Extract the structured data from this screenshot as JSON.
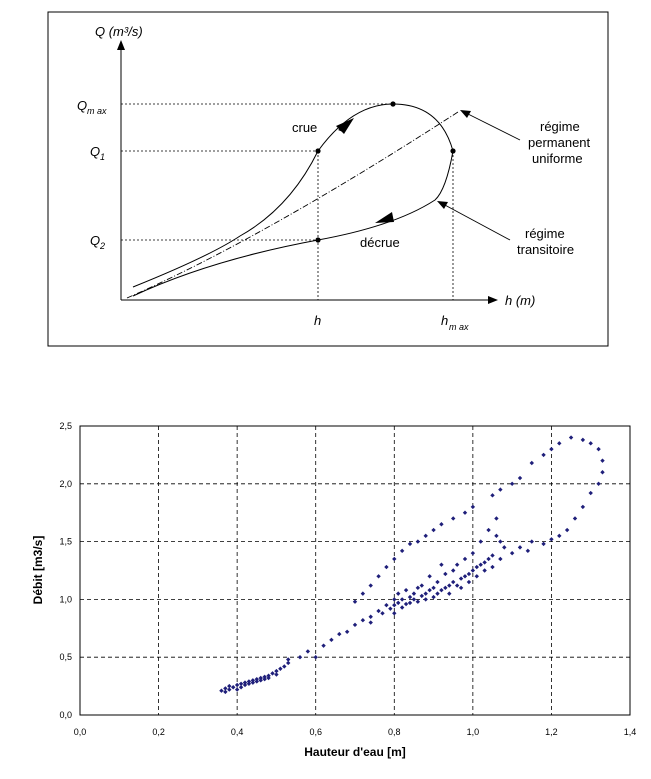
{
  "schematic": {
    "y_axis_label": "Q (m³/s)",
    "x_axis_label": "h (m)",
    "q_max": {
      "main": "Q",
      "sub": "m ax"
    },
    "q1": {
      "main": "Q",
      "sub": "1"
    },
    "q2": {
      "main": "Q",
      "sub": "2"
    },
    "h_tick": "h",
    "h_max": {
      "main": "h",
      "sub": "m ax"
    },
    "crue": "crue",
    "decrue": "décrue",
    "steady": [
      "régime",
      "permanent",
      "uniforme"
    ],
    "transient": [
      "régime",
      "transitoire"
    ]
  },
  "chart_data": {
    "type": "scatter",
    "xlabel": "Hauteur d'eau [m]",
    "ylabel": "Débit [m3/s]",
    "xlim": [
      0.0,
      1.4
    ],
    "ylim": [
      0.0,
      2.5
    ],
    "x_ticks": [
      "0,0",
      "0,2",
      "0,4",
      "0,6",
      "0,8",
      "1,0",
      "1,2",
      "1,4"
    ],
    "y_ticks": [
      "0,0",
      "0,5",
      "1,0",
      "1,5",
      "2,0",
      "2,5"
    ],
    "grid": true,
    "marker_color": "#1f1f7a",
    "series": [
      {
        "points": [
          [
            0.36,
            0.21
          ],
          [
            0.37,
            0.2
          ],
          [
            0.37,
            0.23
          ],
          [
            0.38,
            0.22
          ],
          [
            0.38,
            0.25
          ],
          [
            0.39,
            0.24
          ],
          [
            0.4,
            0.22
          ],
          [
            0.4,
            0.26
          ],
          [
            0.41,
            0.27
          ],
          [
            0.41,
            0.24
          ],
          [
            0.42,
            0.28
          ],
          [
            0.42,
            0.26
          ],
          [
            0.43,
            0.29
          ],
          [
            0.43,
            0.27
          ],
          [
            0.44,
            0.3
          ],
          [
            0.44,
            0.28
          ],
          [
            0.45,
            0.31
          ],
          [
            0.45,
            0.29
          ],
          [
            0.46,
            0.32
          ],
          [
            0.46,
            0.3
          ],
          [
            0.47,
            0.33
          ],
          [
            0.47,
            0.31
          ],
          [
            0.48,
            0.34
          ],
          [
            0.48,
            0.32
          ],
          [
            0.49,
            0.36
          ],
          [
            0.5,
            0.35
          ],
          [
            0.5,
            0.38
          ],
          [
            0.51,
            0.4
          ],
          [
            0.52,
            0.42
          ],
          [
            0.53,
            0.45
          ],
          [
            0.53,
            0.48
          ],
          [
            0.56,
            0.5
          ],
          [
            0.58,
            0.55
          ],
          [
            0.6,
            0.5
          ],
          [
            0.62,
            0.6
          ],
          [
            0.64,
            0.65
          ],
          [
            0.66,
            0.7
          ],
          [
            0.68,
            0.72
          ],
          [
            0.7,
            0.78
          ],
          [
            0.72,
            0.82
          ],
          [
            0.74,
            0.85
          ],
          [
            0.74,
            0.8
          ],
          [
            0.76,
            0.9
          ],
          [
            0.77,
            0.88
          ],
          [
            0.78,
            0.95
          ],
          [
            0.79,
            0.92
          ],
          [
            0.8,
            0.95
          ],
          [
            0.8,
            1.0
          ],
          [
            0.8,
            0.88
          ],
          [
            0.81,
            0.97
          ],
          [
            0.81,
            1.05
          ],
          [
            0.82,
            0.93
          ],
          [
            0.82,
            1.0
          ],
          [
            0.83,
            0.96
          ],
          [
            0.83,
            1.08
          ],
          [
            0.84,
            1.02
          ],
          [
            0.84,
            0.97
          ],
          [
            0.85,
            1.05
          ],
          [
            0.85,
            1.0
          ],
          [
            0.86,
            1.1
          ],
          [
            0.86,
            0.98
          ],
          [
            0.87,
            1.03
          ],
          [
            0.87,
            1.12
          ],
          [
            0.88,
            1.05
          ],
          [
            0.88,
            1.0
          ],
          [
            0.89,
            1.08
          ],
          [
            0.89,
            1.2
          ],
          [
            0.9,
            1.02
          ],
          [
            0.9,
            1.1
          ],
          [
            0.91,
            1.05
          ],
          [
            0.91,
            1.15
          ],
          [
            0.92,
            1.08
          ],
          [
            0.92,
            1.3
          ],
          [
            0.93,
            1.1
          ],
          [
            0.93,
            1.22
          ],
          [
            0.94,
            1.12
          ],
          [
            0.94,
            1.05
          ],
          [
            0.95,
            1.15
          ],
          [
            0.95,
            1.25
          ],
          [
            0.96,
            1.12
          ],
          [
            0.96,
            1.3
          ],
          [
            0.97,
            1.18
          ],
          [
            0.97,
            1.1
          ],
          [
            0.98,
            1.2
          ],
          [
            0.98,
            1.35
          ],
          [
            0.99,
            1.22
          ],
          [
            0.99,
            1.15
          ],
          [
            1.0,
            1.25
          ],
          [
            1.0,
            1.4
          ],
          [
            1.01,
            1.28
          ],
          [
            1.01,
            1.2
          ],
          [
            1.02,
            1.3
          ],
          [
            1.02,
            1.5
          ],
          [
            1.03,
            1.32
          ],
          [
            1.03,
            1.25
          ],
          [
            1.04,
            1.35
          ],
          [
            1.04,
            1.6
          ],
          [
            1.05,
            1.38
          ],
          [
            1.05,
            1.28
          ],
          [
            1.06,
            1.55
          ],
          [
            1.06,
            1.7
          ],
          [
            1.07,
            1.5
          ],
          [
            1.07,
            1.35
          ],
          [
            1.08,
            1.45
          ],
          [
            1.1,
            1.4
          ],
          [
            1.12,
            1.45
          ],
          [
            1.14,
            1.42
          ],
          [
            1.15,
            1.5
          ],
          [
            1.18,
            1.48
          ],
          [
            1.2,
            1.52
          ],
          [
            1.22,
            1.55
          ],
          [
            1.24,
            1.6
          ],
          [
            1.26,
            1.7
          ],
          [
            1.28,
            1.8
          ],
          [
            1.3,
            1.92
          ],
          [
            1.32,
            2.0
          ],
          [
            1.33,
            2.1
          ],
          [
            1.33,
            2.2
          ],
          [
            1.32,
            2.3
          ],
          [
            1.3,
            2.35
          ],
          [
            1.28,
            2.38
          ],
          [
            1.25,
            2.4
          ],
          [
            1.22,
            2.35
          ],
          [
            1.2,
            2.3
          ],
          [
            1.18,
            2.25
          ],
          [
            1.15,
            2.18
          ],
          [
            1.12,
            2.05
          ],
          [
            1.1,
            2.0
          ],
          [
            1.07,
            1.95
          ],
          [
            1.05,
            1.9
          ],
          [
            1.0,
            1.8
          ],
          [
            0.98,
            1.75
          ],
          [
            0.95,
            1.7
          ],
          [
            0.92,
            1.65
          ],
          [
            0.9,
            1.6
          ],
          [
            0.88,
            1.55
          ],
          [
            0.86,
            1.5
          ],
          [
            0.84,
            1.48
          ],
          [
            0.82,
            1.42
          ],
          [
            0.8,
            1.35
          ],
          [
            0.78,
            1.28
          ],
          [
            0.76,
            1.2
          ],
          [
            0.74,
            1.12
          ],
          [
            0.72,
            1.05
          ],
          [
            0.7,
            0.98
          ]
        ]
      }
    ]
  }
}
